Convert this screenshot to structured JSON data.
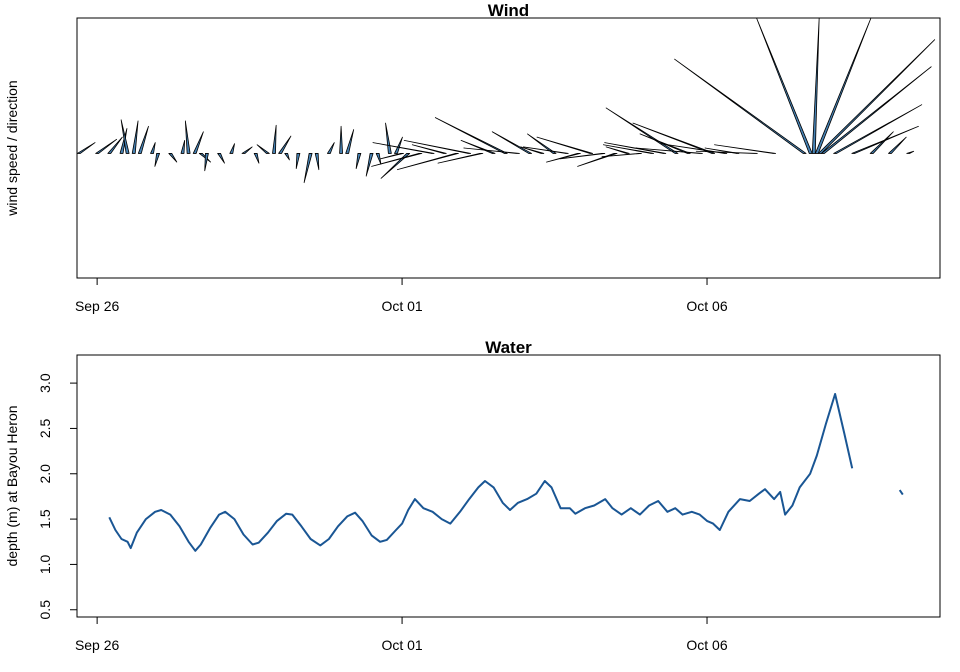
{
  "chart_data": [
    {
      "type": "feather",
      "title": "Wind",
      "y_label": "wind speed / direction",
      "color": "#4682b4",
      "xlim": [
        -0.33,
        13.82
      ],
      "ylim": [
        -11.5,
        12.5
      ],
      "xticks": [
        {
          "value": 0,
          "label": "Sep 26"
        },
        {
          "value": 5,
          "label": "Oct 01"
        },
        {
          "value": 10,
          "label": "Oct 06"
        }
      ],
      "x": [
        -0.3,
        0.0,
        0.2,
        0.4,
        0.5,
        0.6,
        0.7,
        0.9,
        1.0,
        1.2,
        1.4,
        1.5,
        1.6,
        1.7,
        1.8,
        2.0,
        2.2,
        2.4,
        2.6,
        2.8,
        2.9,
        3.0,
        3.1,
        3.3,
        3.5,
        3.6,
        3.8,
        4.0,
        4.1,
        4.3,
        4.5,
        4.6,
        4.8,
        4.9,
        5.0,
        5.1,
        5.3,
        5.5,
        5.7,
        5.9,
        6.1,
        6.3,
        6.5,
        6.7,
        6.9,
        7.1,
        7.3,
        7.5,
        7.7,
        7.9,
        8.1,
        8.3,
        8.5,
        8.7,
        8.9,
        9.1,
        9.3,
        9.5,
        9.7,
        9.9,
        10.1,
        10.3,
        10.5,
        10.8,
        11.1,
        11.6,
        11.7,
        11.75,
        11.8,
        11.85,
        11.9,
        12.1,
        12.4,
        12.7,
        13.0,
        13.3
      ],
      "u": [
        1.5,
        1.8,
        1.2,
        0.5,
        -0.6,
        0.4,
        0.8,
        0.3,
        -0.3,
        0.6,
        0.2,
        -0.3,
        0.8,
        0.9,
        -0.2,
        0.5,
        0.3,
        0.8,
        0.3,
        -1.0,
        0.2,
        1.0,
        0.3,
        -0.2,
        -0.6,
        0.2,
        0.5,
        0.0,
        0.6,
        -0.3,
        -0.5,
        0.3,
        -0.4,
        0.6,
        -2.0,
        -2.5,
        -4.5,
        -5.5,
        -3.0,
        -5.5,
        -6.0,
        -4.0,
        -3.0,
        -6.5,
        -5.0,
        -3.5,
        -2.0,
        -2.5,
        -4.0,
        -3.0,
        -5.0,
        -4.0,
        -3.5,
        -2.0,
        -3.5,
        -4.5,
        -5.5,
        -6.5,
        -4.5,
        -6.0,
        -7.4,
        -6.0,
        -3.0,
        -5.5,
        -5.5,
        -12.0,
        -5.0,
        0.5,
        5.0,
        10.6,
        10.0,
        8.0,
        6.0,
        2.0,
        1.5,
        0.5
      ],
      "v": [
        1.0,
        1.3,
        1.5,
        2.3,
        3.1,
        3.0,
        2.5,
        1.0,
        -1.2,
        -0.8,
        1.2,
        3.0,
        2.0,
        -0.8,
        -1.6,
        -0.9,
        0.9,
        0.6,
        -0.9,
        0.8,
        2.6,
        1.6,
        -0.6,
        -1.4,
        -2.7,
        -1.5,
        1.0,
        2.5,
        2.2,
        -1.4,
        -2.1,
        -1.0,
        2.8,
        1.5,
        -0.5,
        -2.3,
        -1.2,
        1.0,
        0.8,
        -1.5,
        1.2,
        -0.9,
        1.2,
        3.3,
        0.5,
        2.0,
        0.6,
        1.8,
        0.6,
        -0.8,
        1.5,
        -0.5,
        -1.2,
        0.6,
        -0.3,
        0.8,
        1.0,
        4.2,
        1.8,
        0.5,
        2.8,
        0.9,
        0.5,
        0.2,
        0.8,
        8.7,
        12.5,
        12.5,
        12.5,
        10.5,
        8.0,
        4.5,
        2.5,
        2.0,
        1.5,
        0.2
      ]
    },
    {
      "type": "line",
      "title": "Water",
      "y_label": "depth (m) at Bayou Heron",
      "color": "#1a5694",
      "xlim": [
        -0.33,
        13.82
      ],
      "ylim": [
        0.42,
        3.31
      ],
      "xticks": [
        {
          "value": 0,
          "label": "Sep 26"
        },
        {
          "value": 5,
          "label": "Oct 01"
        },
        {
          "value": 10,
          "label": "Oct 06"
        }
      ],
      "yticks": [
        0.5,
        {
          "value": 1,
          "label": "1.0"
        },
        1.5,
        {
          "value": 2,
          "label": "2.0"
        },
        2.5,
        {
          "value": 3,
          "label": "3.0"
        }
      ],
      "x": [
        0.2,
        0.3,
        0.4,
        0.5,
        0.55,
        0.65,
        0.8,
        0.95,
        1.05,
        1.2,
        1.35,
        1.5,
        1.61,
        1.7,
        1.85,
        2.0,
        2.1,
        2.25,
        2.4,
        2.55,
        2.65,
        2.8,
        2.95,
        3.1,
        3.2,
        3.35,
        3.5,
        3.66,
        3.8,
        3.95,
        4.1,
        4.23,
        4.35,
        4.5,
        4.64,
        4.75,
        4.9,
        5.0,
        5.1,
        5.21,
        5.35,
        5.5,
        5.65,
        5.79,
        5.95,
        6.1,
        6.25,
        6.36,
        6.5,
        6.65,
        6.77,
        6.9,
        7.05,
        7.2,
        7.34,
        7.45,
        7.6,
        7.75,
        7.84,
        8.0,
        8.15,
        8.33,
        8.45,
        8.6,
        8.75,
        8.9,
        9.05,
        9.2,
        9.35,
        9.48,
        9.6,
        9.75,
        9.88,
        10.0,
        10.1,
        10.21,
        10.35,
        10.54,
        10.7,
        10.85,
        10.95,
        11.1,
        11.2,
        11.28,
        11.4,
        11.52,
        11.69,
        11.8,
        11.95,
        12.1,
        12.25,
        12.38,
        12.6,
        13.16,
        13.21
      ],
      "values": [
        1.52,
        1.38,
        1.28,
        1.25,
        1.18,
        1.35,
        1.5,
        1.58,
        1.6,
        1.55,
        1.42,
        1.25,
        1.15,
        1.22,
        1.4,
        1.55,
        1.58,
        1.5,
        1.33,
        1.22,
        1.24,
        1.35,
        1.48,
        1.56,
        1.55,
        1.42,
        1.28,
        1.21,
        1.28,
        1.42,
        1.53,
        1.57,
        1.48,
        1.32,
        1.25,
        1.27,
        1.38,
        1.45,
        1.6,
        1.72,
        1.62,
        1.58,
        1.5,
        1.45,
        1.58,
        1.72,
        1.85,
        1.92,
        1.85,
        1.68,
        1.6,
        1.68,
        1.72,
        1.78,
        1.92,
        1.85,
        1.62,
        1.62,
        1.56,
        1.62,
        1.65,
        1.72,
        1.62,
        1.55,
        1.62,
        1.55,
        1.65,
        1.7,
        1.58,
        1.62,
        1.55,
        1.58,
        1.55,
        1.48,
        1.45,
        1.38,
        1.58,
        1.72,
        1.7,
        1.78,
        1.83,
        1.72,
        1.8,
        1.55,
        1.65,
        1.85,
        2.0,
        2.2,
        2.55,
        2.88,
        2.45,
        2.06,
        null,
        1.82,
        1.77
      ]
    }
  ]
}
